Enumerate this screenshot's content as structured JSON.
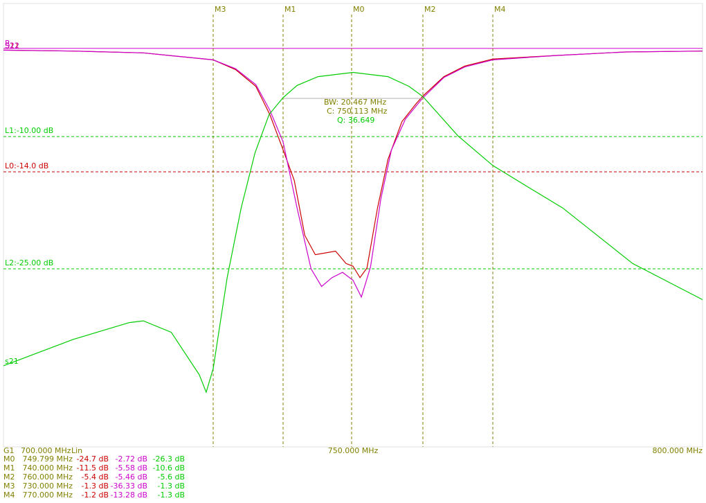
{
  "chart_data": {
    "type": "line",
    "xlim": [
      700,
      800
    ],
    "ylim": [
      -45.2,
      5.1
    ],
    "xticks": [
      {
        "value": 700,
        "label": "700.000 MHz"
      },
      {
        "value": 750,
        "label": "750.000 MHz"
      },
      {
        "value": 800,
        "label": "800.000 MHz"
      }
    ],
    "group": "G1",
    "scale": "Lin",
    "reference": {
      "label": "R",
      "value": 0,
      "color": "#cc00cc"
    },
    "series": [
      {
        "name": "S11",
        "color": "#cc0000",
        "x": [
          700,
          710,
          720,
          730,
          733.2,
          736.1,
          738.1,
          740,
          741.6,
          743.1,
          744.6,
          746,
          747.5,
          749,
          750,
          751,
          752,
          753.5,
          755,
          757,
          759,
          760,
          763,
          766,
          770,
          779,
          789,
          800
        ],
        "values": [
          -0.2,
          -0.3,
          -0.5,
          -1.3,
          -2.4,
          -4.3,
          -7.5,
          -11.5,
          -15,
          -21.2,
          -23.4,
          -23.2,
          -23,
          -24.4,
          -24.7,
          -26,
          -24.9,
          -18.1,
          -12.6,
          -8.3,
          -6.3,
          -5.4,
          -3.2,
          -2,
          -1.2,
          -0.8,
          -0.4,
          -0.3
        ]
      },
      {
        "name": "S22",
        "color": "#cc00cc",
        "x": [
          700,
          710,
          720,
          730,
          733.2,
          736.1,
          738.1,
          740,
          742,
          744,
          745.5,
          747,
          748.5,
          750,
          751.2,
          752.5,
          754,
          755.5,
          757.5,
          760,
          763,
          766,
          770,
          779,
          789,
          800
        ],
        "values": [
          -0.2,
          -0.3,
          -0.5,
          -1.3,
          -2.3,
          -4.1,
          -7,
          -10.6,
          -18.1,
          -25,
          -27,
          -26,
          -25.4,
          -26.3,
          -28.2,
          -24.8,
          -17,
          -11.5,
          -8,
          -5.6,
          -3.3,
          -2.1,
          -1.3,
          -0.8,
          -0.4,
          -0.3
        ]
      },
      {
        "name": "s21",
        "color": "#00cc00",
        "x": [
          700,
          710,
          718,
          720,
          724,
          728,
          729,
          730,
          732,
          734,
          736,
          738,
          740,
          742,
          745,
          750,
          755,
          758,
          760,
          765,
          770,
          775,
          780,
          790,
          800
        ],
        "values": [
          -36,
          -33,
          -31.1,
          -30.9,
          -32.2,
          -37,
          -39,
          -36.33,
          -26,
          -18.1,
          -11.8,
          -7.5,
          -5.58,
          -4.2,
          -3.2,
          -2.72,
          -3.2,
          -4.3,
          -5.46,
          -9.9,
          -13.28,
          -15.7,
          -18.1,
          -24.4,
          -28.5
        ]
      }
    ],
    "limits": [
      {
        "label": "L1:-10.00 dB",
        "value": -10,
        "color": "#00cc00"
      },
      {
        "label": "L0:-14.0 dB",
        "value": -14,
        "color": "#cc0000"
      },
      {
        "label": "L2:-25.00 dB",
        "value": -25,
        "color": "#00cc00"
      }
    ],
    "markers": [
      {
        "name": "M0",
        "freq": {
          "value": 749.799,
          "label": "749.799 MHz"
        },
        "readouts": [
          "-24.7 dB",
          "-2.72 dB",
          "-26.3 dB"
        ]
      },
      {
        "name": "M1",
        "freq": {
          "value": 740,
          "label": "740.000 MHz"
        },
        "readouts": [
          "-11.5 dB",
          "-5.58 dB",
          "-10.6 dB"
        ]
      },
      {
        "name": "M2",
        "freq": {
          "value": 760,
          "label": "760.000 MHz"
        },
        "readouts": [
          "-5.4 dB",
          "-5.46 dB",
          "-5.6 dB"
        ]
      },
      {
        "name": "M3",
        "freq": {
          "value": 730,
          "label": "730.000 MHz"
        },
        "readouts": [
          "-1.3 dB",
          "-36.33 dB",
          "-1.3 dB"
        ]
      },
      {
        "name": "M4",
        "freq": {
          "value": 770,
          "label": "770.000 MHz"
        },
        "readouts": [
          "-1.2 dB",
          "-13.28 dB",
          "-1.3 dB"
        ]
      }
    ],
    "annotations": {
      "bw": "BW:  20.467 MHz",
      "center": "C: 750.113 MHz",
      "q": "Q: 36.649"
    }
  }
}
